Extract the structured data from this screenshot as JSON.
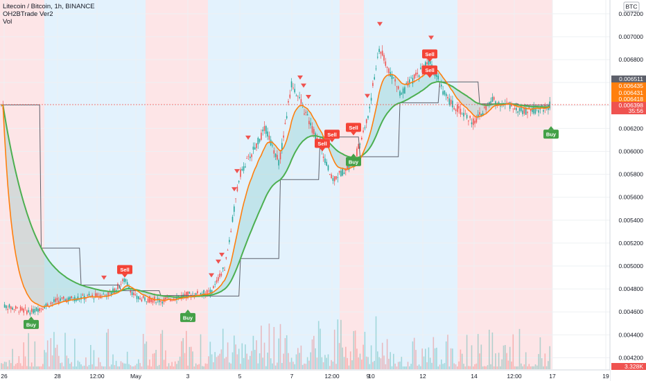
{
  "legend": {
    "symbol_line": "Litecoin / Bitcoin, 1h, BINANCE",
    "indicator": "OH2BTrade Ver2",
    "volume": "Vol"
  },
  "currency_badge": "BTC",
  "price_axis": {
    "ticks": [
      "0.007200",
      "0.007000",
      "0.006800",
      "0.006600",
      "0.006400",
      "0.006200",
      "0.006000",
      "0.005800",
      "0.005600",
      "0.005400",
      "0.005200",
      "0.005000",
      "0.004800",
      "0.004600",
      "0.004400",
      "0.004200"
    ],
    "labels": [
      {
        "text": "0.006511",
        "color": "#5d606b"
      },
      {
        "text": "0.006435",
        "color": "#ff7f0e"
      },
      {
        "text": "0.006431",
        "color": "#ff7f0e"
      },
      {
        "text": "0.006418",
        "color": "#ff7f0e"
      },
      {
        "text": "0.006398",
        "color": "#ef5350"
      },
      {
        "text": "35:56",
        "color": "#ef5350"
      }
    ],
    "volume_label": {
      "text": "3.328K",
      "color": "#ef5350"
    }
  },
  "time_axis": {
    "labels": [
      "26",
      "28",
      "12:00",
      "May",
      "3",
      "5",
      "7",
      "12:00",
      "9",
      "10",
      "12",
      "14",
      "12:00",
      "17",
      "19"
    ]
  },
  "colors": {
    "bull": "#26a69a",
    "bear": "#ef5350",
    "bg_red": "#fde5e7",
    "bg_blue": "#e3f2fd",
    "fast_ma": "#ff7f0e",
    "slow_ma": "#4caf50",
    "step": "#5d606b"
  },
  "chart_data": {
    "type": "candlestick",
    "symbol": "LTCBTC",
    "interval": "1h",
    "ylim": [
      0.0041,
      0.00732
    ],
    "price_path": [
      {
        "x": "26",
        "price": 0.00465
      },
      {
        "x": "27",
        "price": 0.0046
      },
      {
        "x": "28",
        "price": 0.0047
      },
      {
        "x": "28 12:00",
        "price": 0.00474
      },
      {
        "x": "29",
        "price": 0.00476
      },
      {
        "x": "30",
        "price": 0.00488
      },
      {
        "x": "May",
        "price": 0.00472
      },
      {
        "x": "2",
        "price": 0.0047
      },
      {
        "x": "3",
        "price": 0.00475
      },
      {
        "x": "4",
        "price": 0.00477
      },
      {
        "x": "4 12:00",
        "price": 0.005
      },
      {
        "x": "5",
        "price": 0.0058
      },
      {
        "x": "6",
        "price": 0.0062
      },
      {
        "x": "6 12:00",
        "price": 0.0059
      },
      {
        "x": "7",
        "price": 0.0066
      },
      {
        "x": "7 12:00",
        "price": 0.006
      },
      {
        "x": "8",
        "price": 0.00575
      },
      {
        "x": "9",
        "price": 0.0059
      },
      {
        "x": "9 12:00",
        "price": 0.0063
      },
      {
        "x": "10",
        "price": 0.0069
      },
      {
        "x": "11",
        "price": 0.0065
      },
      {
        "x": "12",
        "price": 0.0068
      },
      {
        "x": "13",
        "price": 0.00645
      },
      {
        "x": "14",
        "price": 0.00625
      },
      {
        "x": "15",
        "price": 0.00645
      },
      {
        "x": "16",
        "price": 0.00635
      },
      {
        "x": "17",
        "price": 0.0064
      }
    ],
    "signals": [
      {
        "label": "Buy",
        "x": "27",
        "price": 0.00456
      },
      {
        "label": "Sell",
        "x": "30",
        "price": 0.0049
      },
      {
        "label": "Buy",
        "x": "3",
        "price": 0.00462
      },
      {
        "label": "Sell",
        "x": "7 12:00",
        "price": 0.006
      },
      {
        "label": "Sell",
        "x": "8",
        "price": 0.00608
      },
      {
        "label": "Sell",
        "x": "9",
        "price": 0.00614
      },
      {
        "label": "Buy",
        "x": "9",
        "price": 0.00598
      },
      {
        "label": "Sell",
        "x": "12",
        "price": 0.00678
      },
      {
        "label": "Sell",
        "x": "12",
        "price": 0.00664
      },
      {
        "label": "Buy",
        "x": "17",
        "price": 0.00622
      }
    ],
    "last_price": 0.006398,
    "last_volume": "3.328K"
  }
}
